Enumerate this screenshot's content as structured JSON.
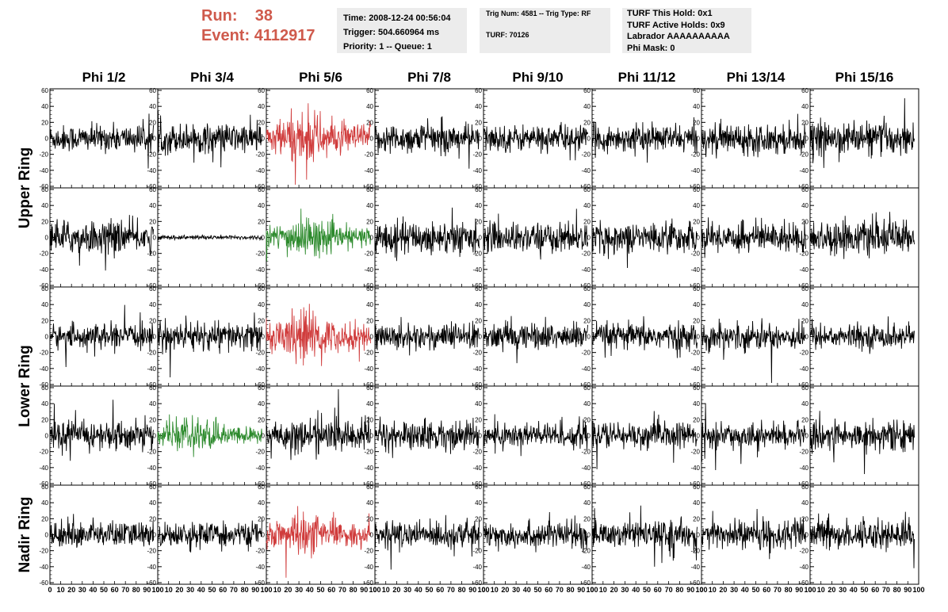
{
  "header": {
    "run_label": "Run:",
    "run_value": "38",
    "event_label": "Event:",
    "event_value": "4112917",
    "accent_color": "#cf5a4c"
  },
  "info_boxes": {
    "time_line": "Time: 2008-12-24 00:56:04",
    "trigger_line": "Trigger: 504.660964 ms",
    "priority_line": "Priority: 1 -- Queue: 1",
    "trig_line": "Trig Num: 4581 -- Trig Type: RF",
    "turf_line": "TURF: 70126",
    "turf_hold_line": "TURF This Hold: 0x1",
    "turf_active_line": "TURF Active Holds: 0x9",
    "labrador_line": "Labrador AAAAAAAAAA",
    "phimask_line": "Phi Mask: 0"
  },
  "chart_data": {
    "type": "line",
    "columns": [
      "Phi 1/2",
      "Phi 3/4",
      "Phi 5/6",
      "Phi 7/8",
      "Phi 9/10",
      "Phi 11/12",
      "Phi 13/14",
      "Phi 15/16"
    ],
    "rows": [
      "Upper Ring",
      "Upper Ring",
      "Lower Ring",
      "Lower Ring",
      "Nadir Ring"
    ],
    "row_labels": [
      "Upper Ring",
      "Lower Ring",
      "Nadir Ring"
    ],
    "ylim": [
      -60,
      60
    ],
    "yticks": [
      -60,
      -40,
      -20,
      0,
      20,
      40,
      60
    ],
    "xlim": [
      0,
      100
    ],
    "xticks": [
      0,
      10,
      20,
      30,
      40,
      50,
      60,
      70,
      80,
      90,
      100
    ],
    "series_colors": {
      "normal": "#000000",
      "triggered": "#d03c3c",
      "green": "#2e8b2e"
    },
    "highlight": [
      {
        "row": 0,
        "col": 2,
        "color": "red"
      },
      {
        "row": 1,
        "col": 2,
        "color": "green"
      },
      {
        "row": 2,
        "col": 2,
        "color": "red"
      },
      {
        "row": 3,
        "col": 1,
        "color": "green"
      },
      {
        "row": 4,
        "col": 2,
        "color": "red"
      }
    ],
    "amplitude": [
      [
        18,
        20,
        30,
        20,
        18,
        18,
        20,
        22
      ],
      [
        22,
        3,
        22,
        22,
        20,
        20,
        20,
        22
      ],
      [
        16,
        20,
        28,
        18,
        18,
        18,
        18,
        16
      ],
      [
        20,
        18,
        22,
        20,
        18,
        18,
        16,
        20
      ],
      [
        18,
        16,
        22,
        18,
        18,
        18,
        20,
        20
      ]
    ]
  }
}
